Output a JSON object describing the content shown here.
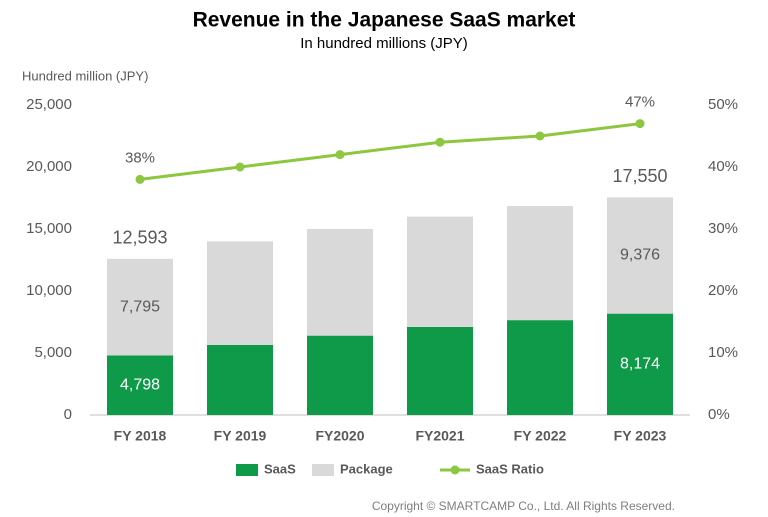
{
  "chart_data": {
    "type": "stacked_bar_line",
    "title": "Revenue in the Japanese SaaS market",
    "subtitle": "In hundred millions (JPY)",
    "y_axis_label": "Hundred million (JPY)",
    "footnote": "Copyright © SMARTCAMP Co., Ltd. All Rights Reserved.",
    "categories": [
      "FY 2018",
      "FY 2019",
      "FY2020",
      "FY2021",
      "FY 2022",
      "FY 2023"
    ],
    "series": [
      {
        "name": "SaaS",
        "color": "#0e9a48",
        "values": [
          4798,
          5650,
          6400,
          7100,
          7650,
          8174
        ],
        "value_labels": [
          "4,798",
          null,
          null,
          null,
          null,
          "8,174"
        ]
      },
      {
        "name": "Package",
        "color": "#d9d9d9",
        "values": [
          7795,
          8350,
          8600,
          8900,
          9200,
          9376
        ],
        "value_labels": [
          "7,795",
          null,
          null,
          null,
          null,
          "9,376"
        ]
      },
      {
        "name": "SaaS Ratio",
        "color": "#8dc63f",
        "axis": "y2",
        "values": [
          38,
          40,
          42,
          44,
          45,
          47
        ],
        "value_labels": [
          "38%",
          null,
          null,
          null,
          null,
          "47%"
        ]
      }
    ],
    "total_labels": [
      "12,593",
      null,
      null,
      null,
      null,
      "17,550"
    ],
    "ylim": [
      0,
      25000
    ],
    "yticks": [
      0,
      {
        "value": 5000,
        "label": "5,000"
      },
      {
        "value": 10000,
        "label": "10,000"
      },
      {
        "value": 15000,
        "label": "15,000"
      },
      {
        "value": 20000,
        "label": "20,000"
      },
      {
        "value": 25000,
        "label": "25,000"
      }
    ],
    "y2lim": [
      0,
      50
    ],
    "y2ticks": [
      {
        "value": 0,
        "label": "0%"
      },
      {
        "value": 10,
        "label": "10%"
      },
      {
        "value": 20,
        "label": "20%"
      },
      {
        "value": 30,
        "label": "30%"
      },
      {
        "value": 40,
        "label": "40%"
      },
      {
        "value": 50,
        "label": "50%"
      }
    ]
  }
}
